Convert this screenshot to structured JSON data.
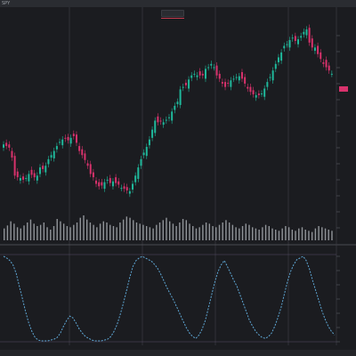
{
  "window": {
    "title": "SPY"
  },
  "top_badge": {
    "label": ""
  },
  "price_axis": {
    "labels": []
  },
  "last_price": {
    "label": ""
  },
  "status_bar": {
    "left": "",
    "right": ""
  },
  "colors": {
    "bull": "#1fb89b",
    "bear": "#d8326c",
    "volume": "#b8bcc2",
    "oscillator": "#5fa8d6",
    "axis_marker": "#d8326c",
    "grid": "#3a3c42"
  },
  "chart_data": [
    {
      "type": "candlestick",
      "title": "",
      "series": [
        {
          "values_close": [
            178,
            176,
            174,
            162,
            140,
            138,
            137,
            135,
            137,
            142,
            141,
            138,
            140,
            150,
            148,
            152,
            160,
            165,
            170,
            176,
            181,
            184,
            185,
            183,
            186,
            188,
            180,
            170,
            165,
            159,
            152,
            142,
            138,
            130,
            127,
            128,
            132,
            135,
            131,
            133,
            131,
            129,
            125,
            124,
            122,
            121,
            130,
            140,
            150,
            160,
            168,
            175,
            184,
            196,
            207,
            205,
            206,
            205,
            208,
            211,
            218,
            225,
            230,
            245,
            248,
            250,
            257,
            262,
            264,
            262,
            262,
            262,
            270,
            272,
            276,
            272,
            262,
            258,
            252,
            248,
            252,
            256,
            258,
            260,
            261,
            258,
            252,
            246,
            242,
            239,
            238,
            238,
            240,
            246,
            254,
            260,
            268,
            276,
            284,
            290,
            298,
            300,
            305,
            308,
            304,
            306,
            310,
            315,
            318,
            302,
            296,
            296,
            288,
            282,
            276,
            272,
            268,
            264
          ]
        }
      ]
    },
    {
      "type": "bar",
      "title": "",
      "values": [
        20,
        25,
        32,
        28,
        22,
        20,
        25,
        30,
        35,
        28,
        24,
        26,
        30,
        22,
        18,
        24,
        36,
        32,
        28,
        24,
        22,
        26,
        30,
        38,
        42,
        35,
        30,
        26,
        22,
        28,
        32,
        30,
        26,
        24,
        22,
        30,
        35,
        40,
        38,
        34,
        30,
        28,
        26,
        24,
        22,
        20,
        26,
        30,
        34,
        38,
        32,
        28,
        24,
        30,
        36,
        34,
        28,
        24,
        20,
        22,
        26,
        30,
        28,
        24,
        22,
        26,
        30,
        34,
        30,
        26,
        22,
        20,
        24,
        28,
        26,
        22,
        20,
        18,
        22,
        26,
        24,
        20,
        18,
        16,
        20,
        24,
        22,
        18,
        16,
        20,
        22,
        18,
        16,
        14,
        20,
        24,
        22,
        20,
        18,
        16
      ]
    },
    {
      "type": "line",
      "title": "",
      "series": [
        {
          "values": [
            100,
            98,
            95,
            90,
            80,
            65,
            50,
            35,
            22,
            12,
            5,
            2,
            1,
            1,
            1,
            2,
            3,
            5,
            10,
            18,
            25,
            30,
            28,
            22,
            15,
            10,
            6,
            4,
            2,
            1,
            1,
            1,
            2,
            3,
            6,
            12,
            20,
            32,
            45,
            60,
            75,
            88,
            95,
            98,
            100,
            98,
            96,
            94,
            90,
            85,
            78,
            70,
            62,
            55,
            48,
            40,
            32,
            24,
            16,
            10,
            6,
            4,
            8,
            15,
            25,
            40,
            55,
            70,
            82,
            90,
            95,
            88,
            80,
            72,
            65,
            55,
            45,
            35,
            25,
            18,
            12,
            8,
            5,
            4,
            6,
            10,
            18,
            28,
            40,
            55,
            70,
            82,
            90,
            96,
            98,
            100,
            95,
            85,
            72,
            60,
            48,
            36,
            26,
            18,
            12,
            8
          ]
        }
      ]
    }
  ]
}
